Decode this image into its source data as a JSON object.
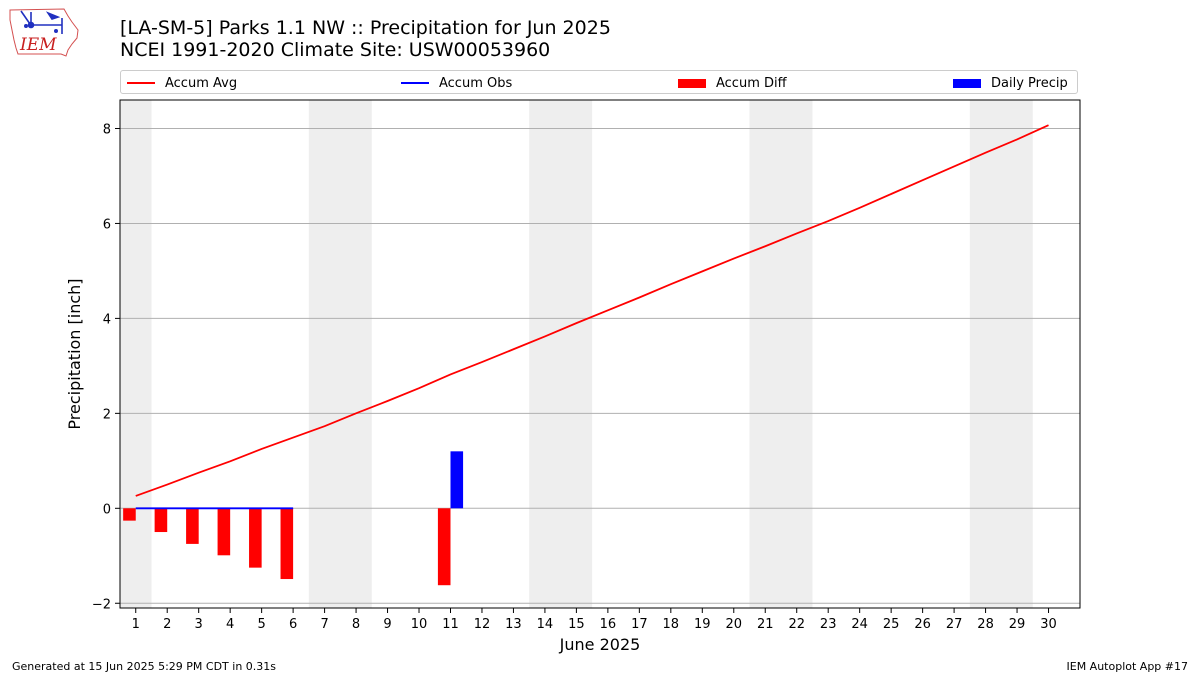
{
  "logo": {
    "text": "IEM",
    "icon": "iem-iowa-map-logo"
  },
  "header": {
    "title_line1": "[LA-SM-5] Parks 1.1 NW :: Precipitation for Jun 2025",
    "title_line2": "NCEI 1991-2020 Climate Site: USW00053960"
  },
  "legend": {
    "placement": "top",
    "items": [
      {
        "label": "Accum Avg",
        "type": "line",
        "color": "#ff0000"
      },
      {
        "label": "Accum Obs",
        "type": "line",
        "color": "#0000ff"
      },
      {
        "label": "Accum Diff",
        "type": "patch",
        "color": "#ff0000"
      },
      {
        "label": "Daily Precip",
        "type": "patch",
        "color": "#0000ff"
      }
    ]
  },
  "chart_data": {
    "type": "bar",
    "title": "[LA-SM-5] Parks 1.1 NW :: Precipitation for Jun 2025",
    "subtitle": "NCEI 1991-2020 Climate Site: USW00053960",
    "xlabel": "June 2025",
    "ylabel": "Precipitation [inch]",
    "xlim": [
      0.5,
      31
    ],
    "ylim": [
      -2.1,
      8.6
    ],
    "yticks": [
      -2,
      0,
      2,
      4,
      6,
      8
    ],
    "xticks": [
      1,
      2,
      3,
      4,
      5,
      6,
      7,
      8,
      9,
      10,
      11,
      12,
      13,
      14,
      15,
      16,
      17,
      18,
      19,
      20,
      21,
      22,
      23,
      24,
      25,
      26,
      27,
      28,
      29,
      30
    ],
    "grid": "horizontal",
    "weekend_shading": {
      "color": "#eeeeee",
      "ranges": [
        [
          0.5,
          1.5
        ],
        [
          6.5,
          8.5
        ],
        [
          13.5,
          15.5
        ],
        [
          20.5,
          22.5
        ],
        [
          27.5,
          29.5
        ]
      ]
    },
    "series": [
      {
        "name": "Accum Avg",
        "type": "line",
        "color": "#ff0000",
        "x": [
          1,
          2,
          3,
          4,
          5,
          6,
          7,
          8,
          9,
          10,
          11,
          12,
          13,
          14,
          15,
          16,
          17,
          18,
          19,
          20,
          21,
          22,
          23,
          24,
          25,
          26,
          27,
          28,
          29,
          30
        ],
        "values": [
          0.26,
          0.5,
          0.75,
          0.99,
          1.25,
          1.49,
          1.73,
          2.0,
          2.26,
          2.53,
          2.82,
          3.08,
          3.35,
          3.62,
          3.9,
          4.17,
          4.44,
          4.72,
          4.99,
          5.26,
          5.52,
          5.79,
          6.05,
          6.33,
          6.62,
          6.91,
          7.2,
          7.49,
          7.77,
          8.07
        ]
      },
      {
        "name": "Accum Obs",
        "type": "line",
        "color": "#0000ff",
        "x": [
          1,
          2,
          3,
          4,
          5,
          6
        ],
        "values": [
          0,
          0,
          0,
          0,
          0,
          0
        ]
      },
      {
        "name": "Accum Diff",
        "type": "bar",
        "color": "#ff0000",
        "offset": -0.2,
        "width": 0.4,
        "x": [
          1,
          2,
          3,
          4,
          5,
          6,
          11
        ],
        "values": [
          -0.26,
          -0.5,
          -0.75,
          -0.99,
          -1.25,
          -1.49,
          -1.62
        ]
      },
      {
        "name": "Daily Precip",
        "type": "bar",
        "color": "#0000ff",
        "offset": 0.2,
        "width": 0.4,
        "x": [
          11
        ],
        "values": [
          1.2
        ]
      }
    ]
  },
  "footer": {
    "left": "Generated at 15 Jun 2025 5:29 PM CDT in 0.31s",
    "right": "IEM Autoplot App #17"
  }
}
